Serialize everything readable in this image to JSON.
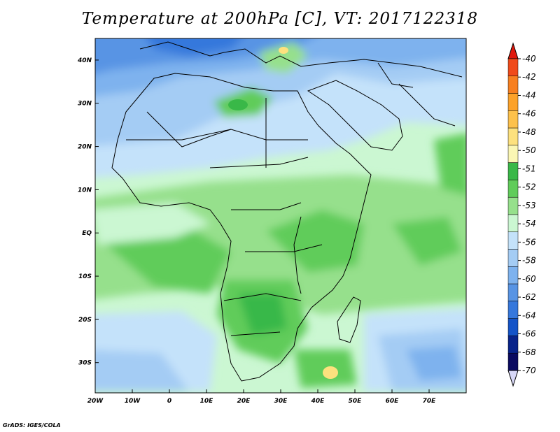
{
  "title": "Temperature at 200hPa [C], VT: 2017122318",
  "credit": "GrADS: IGES/COLA",
  "map": {
    "lon_range": [
      -20,
      80
    ],
    "lat_range": [
      -37,
      45
    ],
    "lat_ticks": [
      {
        "value": 40,
        "label": "40N"
      },
      {
        "value": 30,
        "label": "30N"
      },
      {
        "value": 20,
        "label": "20N"
      },
      {
        "value": 10,
        "label": "10N"
      },
      {
        "value": 0,
        "label": "EQ"
      },
      {
        "value": -10,
        "label": "10S"
      },
      {
        "value": -20,
        "label": "20S"
      },
      {
        "value": -30,
        "label": "30S"
      }
    ],
    "lon_ticks": [
      {
        "value": -20,
        "label": "20W"
      },
      {
        "value": -10,
        "label": "10W"
      },
      {
        "value": 0,
        "label": "0"
      },
      {
        "value": 10,
        "label": "10E"
      },
      {
        "value": 20,
        "label": "20E"
      },
      {
        "value": 30,
        "label": "30E"
      },
      {
        "value": 40,
        "label": "40E"
      },
      {
        "value": 50,
        "label": "50E"
      },
      {
        "value": 60,
        "label": "60E"
      },
      {
        "value": 70,
        "label": "70E"
      }
    ]
  },
  "colorbar": {
    "labels": [
      "-40",
      "-42",
      "-44",
      "-46",
      "-48",
      "-50",
      "-51",
      "-52",
      "-53",
      "-54",
      "-56",
      "-58",
      "-60",
      "-62",
      "-64",
      "-66",
      "-68",
      "-70"
    ],
    "colors": [
      "#e0180c",
      "#f04a1a",
      "#f77f20",
      "#fca22a",
      "#fdc14b",
      "#fde17e",
      "#fbf7b4",
      "#39b848",
      "#60cc5a",
      "#96e08c",
      "#cbf7d2",
      "#c4e2fa",
      "#a4ccf4",
      "#7eb2ee",
      "#5894e4",
      "#3678dc",
      "#1454c8",
      "#08238a",
      "#0a0a60",
      "#d8d8f8"
    ],
    "top_arrow_color": "#e0180c",
    "bottom_arrow_color": "#d8d8f8"
  }
}
